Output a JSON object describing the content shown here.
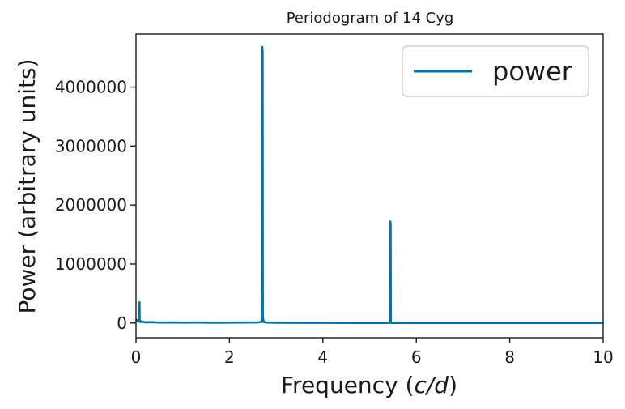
{
  "chart_data": {
    "type": "line",
    "title": "Periodogram of 14 Cyg",
    "xlabel_main": "Frequency (",
    "xlabel_math": "c/d",
    "xlabel_close": ")",
    "ylabel": "Power (arbitrary units)",
    "xlim": [
      0,
      10
    ],
    "ylim": [
      -250000,
      4900000
    ],
    "x_ticks": [
      0,
      2,
      4,
      6,
      8,
      10
    ],
    "x_tick_labels": [
      "0",
      "2",
      "4",
      "6",
      "8",
      "10"
    ],
    "y_ticks": [
      0,
      1000000,
      2000000,
      3000000,
      4000000
    ],
    "y_tick_labels": [
      "0",
      "1000000",
      "2000000",
      "3000000",
      "4000000"
    ],
    "grid": false,
    "legend_position": "top-right",
    "series": [
      {
        "name": "power",
        "color": "#0072b2",
        "x": [
          0.0,
          0.03,
          0.05,
          0.06,
          0.07,
          0.075,
          0.08,
          0.085,
          0.09,
          0.1,
          0.11,
          0.13,
          0.16,
          0.2,
          0.3,
          0.5,
          0.8,
          1.0,
          1.3,
          1.6,
          2.0,
          2.3,
          2.6,
          2.69,
          2.695,
          2.7,
          2.705,
          2.71,
          2.715,
          2.72,
          2.725,
          2.73,
          2.735,
          2.74,
          2.76,
          2.8,
          3.0,
          3.5,
          4.0,
          4.5,
          5.0,
          5.3,
          5.43,
          5.44,
          5.445,
          5.45,
          5.455,
          5.46,
          5.47,
          5.6,
          6.0,
          7.0,
          8.0,
          9.0,
          10.0
        ],
        "y": [
          60000,
          40000,
          50000,
          30000,
          40000,
          350000,
          20000,
          40000,
          30000,
          20000,
          30000,
          15000,
          20000,
          10000,
          15000,
          8000,
          10000,
          6000,
          8000,
          5000,
          6000,
          8000,
          10000,
          20000,
          420000,
          30000,
          4680000,
          4600000,
          120000,
          30000,
          60000,
          20000,
          30000,
          15000,
          10000,
          8000,
          5000,
          3000,
          3000,
          2000,
          2000,
          2000,
          3000,
          10000,
          1720000,
          1680000,
          10000,
          3000,
          2000,
          2000,
          2000,
          1500,
          1000,
          1000,
          1000
        ]
      }
    ]
  }
}
